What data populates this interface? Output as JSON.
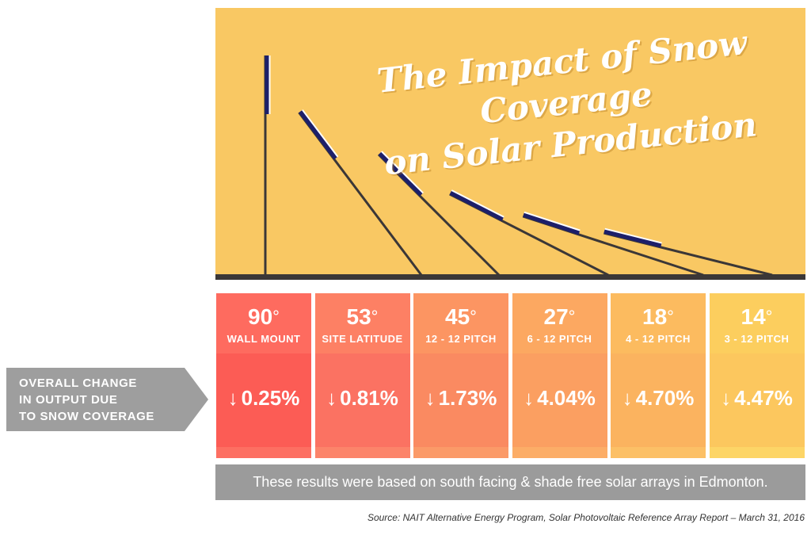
{
  "chart_data": {
    "type": "table",
    "title": "The Impact of Snow Coverage on Solar Production",
    "row_label": "OVERALL CHANGE IN OUTPUT DUE TO SNOW COVERAGE",
    "columns": [
      {
        "angle": "90",
        "degree_symbol": "°",
        "label": "WALL MOUNT",
        "value_text": "0.25%",
        "value": 0.25,
        "direction": "down",
        "top_color": "#fe6b5f",
        "bottom_color": "#fc5c55",
        "strip_color": "#fd6f62"
      },
      {
        "angle": "53",
        "degree_symbol": "°",
        "label": "SITE LATITUDE",
        "value_text": "0.81%",
        "value": 0.81,
        "direction": "down",
        "top_color": "#fd8064",
        "bottom_color": "#fb7262",
        "strip_color": "#fc846a"
      },
      {
        "angle": "45",
        "degree_symbol": "°",
        "label": "12 - 12 PITCH",
        "value_text": "1.73%",
        "value": 1.73,
        "direction": "down",
        "top_color": "#fc9562",
        "bottom_color": "#fa8a61",
        "strip_color": "#fb9a68"
      },
      {
        "angle": "27",
        "degree_symbol": "°",
        "label": "6 - 12 PITCH",
        "value_text": "4.04%",
        "value": 4.04,
        "direction": "down",
        "top_color": "#fca861",
        "bottom_color": "#fb9f61",
        "strip_color": "#fcad67"
      },
      {
        "angle": "18",
        "degree_symbol": "°",
        "label": "4 - 12 PITCH",
        "value_text": "4.70%",
        "value": 4.7,
        "direction": "down",
        "top_color": "#fcbb5f",
        "bottom_color": "#fbb35f",
        "strip_color": "#fcc066"
      },
      {
        "angle": "14",
        "degree_symbol": "°",
        "label": "3 - 12 PITCH",
        "value_text": "4.47%",
        "value": 4.47,
        "direction": "down",
        "top_color": "#fcce5e",
        "bottom_color": "#fcc75e",
        "strip_color": "#fdd566"
      }
    ]
  },
  "texts": {
    "title_line1": "The Impact of Snow Coverage",
    "title_line2": "on Solar Production",
    "label": "OVERALL CHANGE IN OUTPUT DUE TO SNOW COVERAGE",
    "label_line1": "OVERALL CHANGE",
    "label_line2": "IN OUTPUT DUE",
    "label_line3": "TO SNOW COVERAGE",
    "note": "These results were based on south facing & shade free solar arrays in Edmonton.",
    "source": "Source: NAIT Alternative Energy Program, Solar Photovoltaic Reference Array Report – March 31, 2016",
    "arrow_glyph": "↓"
  },
  "colors": {
    "panel_bg": "#f9c863",
    "ground": "#3b3737",
    "pole": "#3b3737",
    "panel_blue": "#1d1f6a",
    "snow": "#ffffff",
    "label_bg": "#9e9e9e",
    "note_bg": "#9b9b9b"
  },
  "icons": {
    "down_arrow": "down-arrow-icon",
    "solar_panel": "solar-panel-icon"
  }
}
